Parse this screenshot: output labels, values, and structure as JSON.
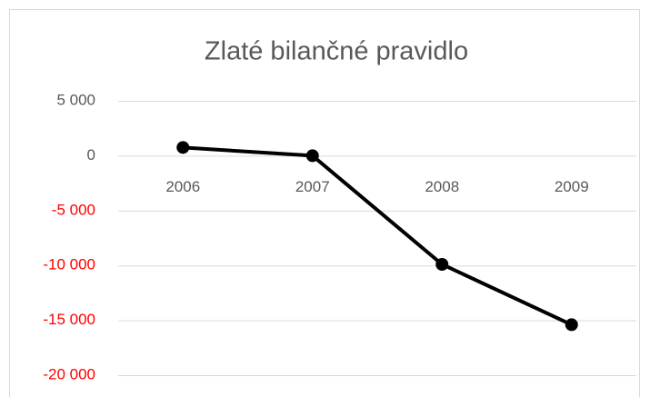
{
  "chart_data": {
    "type": "line",
    "title": "Zlaté bilančné pravidlo",
    "categories": [
      "2006",
      "2007",
      "2008",
      "2009"
    ],
    "values": [
      750,
      0,
      -9900,
      -15400
    ],
    "color": "#000000",
    "ylim": [
      -20000,
      5000
    ],
    "yticks": [
      {
        "value": 5000,
        "label": "5 000"
      },
      0,
      {
        "value": -5000,
        "label": "-5 000"
      },
      {
        "value": -10000,
        "label": "-10 000"
      },
      {
        "value": -15000,
        "label": "-15 000"
      },
      {
        "value": -20000,
        "label": "-20 000"
      }
    ],
    "negative_tick_color": "#ff0000",
    "grid": true
  }
}
